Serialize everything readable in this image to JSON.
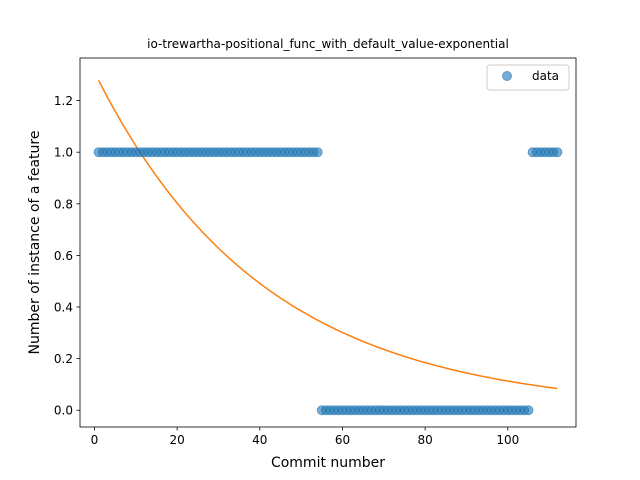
{
  "chart_data": {
    "type": "scatter",
    "title": "io-trewartha-positional_func_with_default_value-exponential",
    "xlabel": "Commit number",
    "ylabel": "Number of instance of a feature",
    "xlim": [
      -3.5,
      116.5
    ],
    "ylim": [
      -0.065,
      1.365
    ],
    "xticks": [
      0,
      20,
      40,
      60,
      80,
      100
    ],
    "yticks": [
      0.0,
      0.2,
      0.4,
      0.6,
      0.8,
      1.0,
      1.2
    ],
    "legend": {
      "position": "top-right",
      "entries": [
        "data"
      ]
    },
    "grid": false,
    "series": [
      {
        "name": "data",
        "kind": "scatter",
        "color": "#1f77b4",
        "segments": [
          {
            "x_from": 1,
            "x_to": 54,
            "y": 1
          },
          {
            "x_from": 55,
            "x_to": 105,
            "y": 0
          },
          {
            "x_from": 106,
            "x_to": 112,
            "y": 1
          }
        ]
      },
      {
        "kind": "line",
        "color": "#ff7f0e",
        "model": "exponential",
        "a": 1.31,
        "b": 0.0245,
        "x_from": 1,
        "x_to": 112
      }
    ]
  }
}
